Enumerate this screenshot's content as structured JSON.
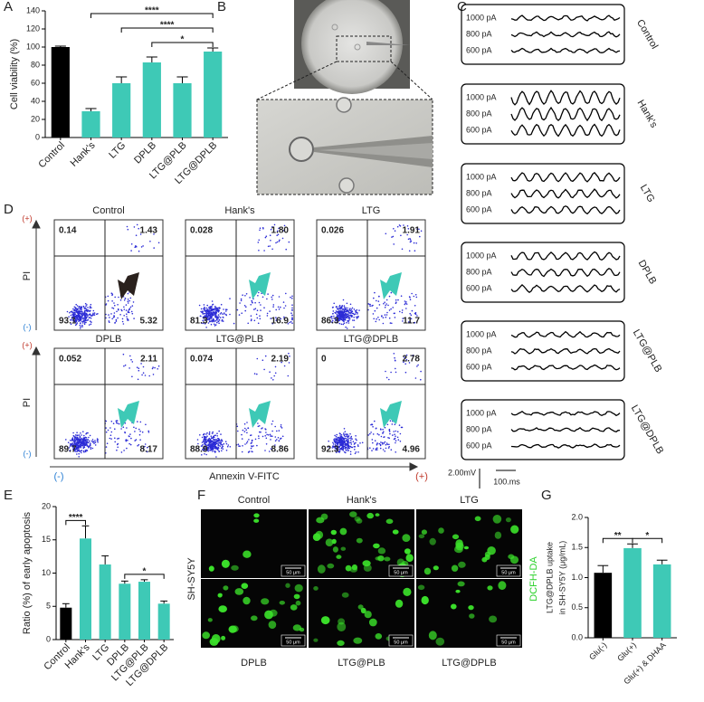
{
  "panel_labels": [
    "A",
    "B",
    "C",
    "D",
    "E",
    "F",
    "G"
  ],
  "chart_data": [
    {
      "type": "bar",
      "ylabel": "Cell viability (%)",
      "categories": [
        "Control",
        "Hank's",
        "LTG",
        "DPLB",
        "LTG@PLB",
        "LTG@DPLB"
      ],
      "values": [
        100,
        29,
        60,
        83,
        60,
        95
      ],
      "errors": [
        1,
        3,
        7,
        6,
        7,
        4
      ],
      "colors": [
        "#000000",
        "#3ec9b6",
        "#3ec9b6",
        "#3ec9b6",
        "#3ec9b6",
        "#3ec9b6"
      ],
      "ylim": [
        0,
        140
      ],
      "yticks": [
        0,
        20,
        40,
        60,
        80,
        100,
        120,
        140
      ],
      "significance": [
        {
          "label": "****",
          "from": "Hank's",
          "to": "LTG@DPLB"
        },
        {
          "label": "****",
          "from": "LTG",
          "to": "LTG@DPLB"
        },
        {
          "label": "*",
          "from": "DPLB",
          "to": "LTG@DPLB"
        }
      ]
    },
    {
      "type": "bar",
      "ylabel": "Ratio (%) of early apoptosis",
      "categories": [
        "Control",
        "Hank's",
        "LTG",
        "DPLB",
        "LTG@PLB",
        "LTG@DPLB"
      ],
      "values": [
        4.8,
        15.2,
        11.3,
        8.4,
        8.7,
        5.4
      ],
      "errors": [
        0.6,
        1.9,
        1.3,
        0.4,
        0.3,
        0.4
      ],
      "colors": [
        "#000000",
        "#3ec9b6",
        "#3ec9b6",
        "#3ec9b6",
        "#3ec9b6",
        "#3ec9b6"
      ],
      "ylim": [
        0,
        20
      ],
      "yticks": [
        0,
        5,
        10,
        15,
        20
      ],
      "significance": [
        {
          "label": "****",
          "from": "Control",
          "to": "Hank's"
        },
        {
          "label": "*",
          "from": "DPLB",
          "to": "LTG@DPLB"
        }
      ]
    },
    {
      "type": "bar",
      "ylabel": [
        "LTG@DPLB uptake",
        "in SH-SY5Y (μg/mL)"
      ],
      "categories": [
        "Glu(-)",
        "Glu(+)",
        "Glu(+) & DHAA"
      ],
      "values": [
        1.08,
        1.49,
        1.22
      ],
      "errors": [
        0.12,
        0.07,
        0.07
      ],
      "colors": [
        "#000000",
        "#3ec9b6",
        "#3ec9b6"
      ],
      "ylim": [
        0,
        2
      ],
      "yticks": [
        {
          "value": 0,
          "label": "0.0"
        },
        0.5,
        {
          "value": 1,
          "label": "1.0"
        },
        1.5,
        {
          "value": 2,
          "label": "2.0"
        }
      ],
      "significance": [
        {
          "label": "**",
          "from": "Glu(-)",
          "to": "Glu(+)"
        },
        {
          "label": "*",
          "from": "Glu(+)",
          "to": "Glu(+) & DHAA"
        }
      ]
    }
  ],
  "traces": {
    "groups": [
      "Control",
      "Hank's",
      "LTG",
      "DPLB",
      "LTG@PLB",
      "LTG@DPLB"
    ],
    "currents": [
      "1000 pA",
      "800 pA",
      "600 pA"
    ],
    "scale_v": "2.00mV",
    "scale_t": "100.ms"
  },
  "flow": {
    "y_label": "PI",
    "plus": "(+)",
    "minus": "(-)",
    "x_label": "Annexin V-FITC",
    "plots": [
      {
        "title": "Control",
        "ul": "0.14",
        "ur": "1.43",
        "ll": "93.1",
        "lr": "5.32"
      },
      {
        "title": "Hank's",
        "ul": "0.028",
        "ur": "1.80",
        "ll": "81.3",
        "lr": "16.9"
      },
      {
        "title": "LTG",
        "ul": "0.026",
        "ur": "1.91",
        "ll": "86.3",
        "lr": "11.7"
      },
      {
        "title": "DPLB",
        "ul": "0.052",
        "ur": "2.11",
        "ll": "89.7",
        "lr": "8.17"
      },
      {
        "title": "LTG@PLB",
        "ul": "0.074",
        "ur": "2.19",
        "ll": "88.9",
        "lr": "8.86"
      },
      {
        "title": "LTG@DPLB",
        "ul": "0",
        "ur": "2.78",
        "ll": "92.3",
        "lr": "4.96"
      }
    ]
  },
  "fluorescence": {
    "top": [
      "Control",
      "Hank's",
      "LTG"
    ],
    "bottom": [
      "DPLB",
      "LTG@PLB",
      "LTG@DPLB"
    ],
    "cell_line": "SH-SY5Y",
    "stain": "DCFH-DA",
    "scale": "50 μm"
  }
}
